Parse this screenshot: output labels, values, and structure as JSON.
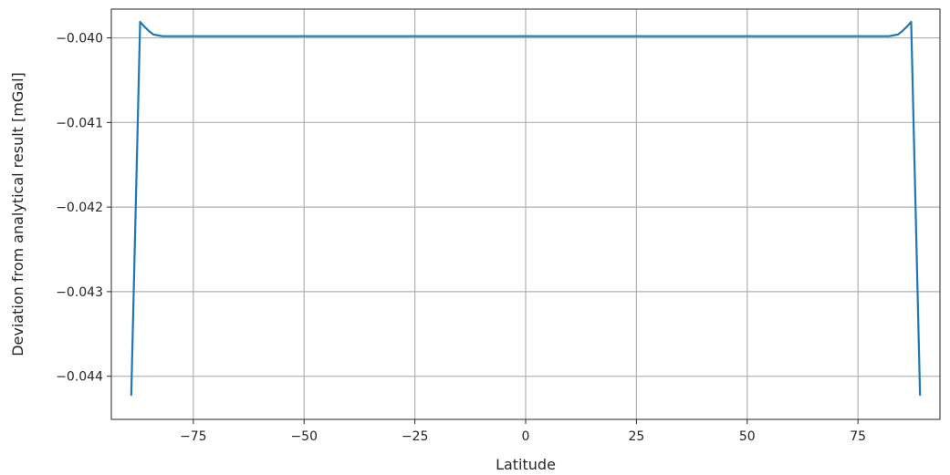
{
  "chart_data": {
    "type": "line",
    "title": "",
    "xlabel": "Latitude",
    "ylabel": "Deviation from analytical result [mGal]",
    "xlim": [
      -93.5,
      93.5
    ],
    "ylim": [
      -0.04451,
      -0.03966
    ],
    "grid": true,
    "legend": "none",
    "color": "#1f77b4",
    "xticks": [
      -75,
      -50,
      -25,
      0,
      25,
      50,
      75
    ],
    "xtick_labels": [
      "−75",
      "−50",
      "−25",
      "0",
      "25",
      "50",
      "75"
    ],
    "yticks": [
      -0.04,
      -0.041,
      -0.042,
      -0.043,
      -0.044
    ],
    "ytick_labels": [
      "−0.040",
      "−0.041",
      "−0.042",
      "−0.043",
      "−0.044"
    ],
    "series": [
      {
        "x": [
          -89,
          -87,
          -86,
          -85,
          -84,
          -83,
          -82,
          -81,
          -80,
          -79,
          -78,
          -76,
          -74,
          -70,
          -60,
          -40,
          -20,
          0,
          20,
          40,
          60,
          70,
          74,
          76,
          78,
          79,
          80,
          81,
          82,
          83,
          84,
          85,
          86,
          87,
          89
        ],
        "y": [
          -0.04422,
          -0.03981,
          -0.03987,
          -0.03992,
          -0.03996,
          -0.03997,
          -0.03998,
          -0.03998,
          -0.03998,
          -0.03998,
          -0.03998,
          -0.03998,
          -0.03998,
          -0.03998,
          -0.03998,
          -0.03998,
          -0.03998,
          -0.03998,
          -0.03998,
          -0.03998,
          -0.03998,
          -0.03998,
          -0.03998,
          -0.03998,
          -0.03998,
          -0.03998,
          -0.03998,
          -0.03998,
          -0.03998,
          -0.03997,
          -0.03996,
          -0.03992,
          -0.03987,
          -0.03981,
          -0.04422
        ]
      }
    ]
  }
}
